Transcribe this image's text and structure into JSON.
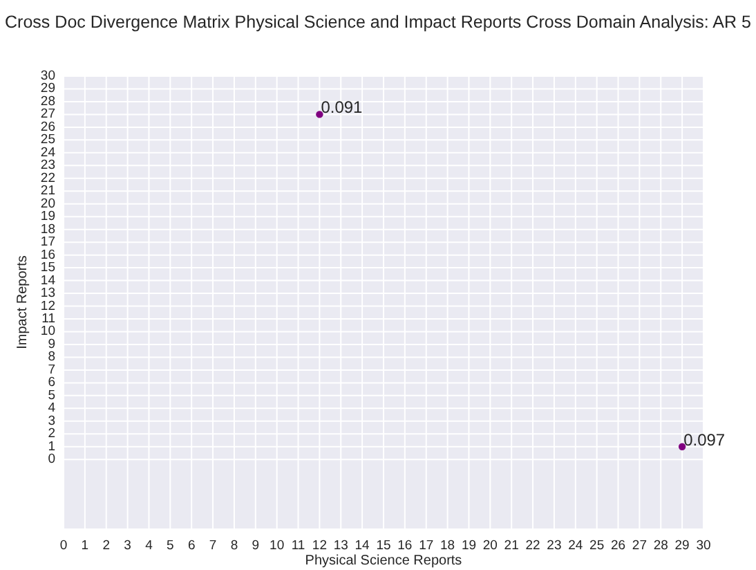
{
  "chart_data": {
    "type": "scatter",
    "title": "Cross Doc Divergence Matrix  Physical Science and Impact Reports Cross Domain Analysis: AR 5",
    "xlabel": "Physical Science Reports",
    "ylabel": "Impact Reports",
    "x": [
      12,
      29
    ],
    "values": [
      27,
      1
    ],
    "color": "#800080",
    "annotations": [
      {
        "text": "0.091",
        "x": 12,
        "y": 27
      },
      {
        "text": "0.097",
        "x": 29,
        "y": 1
      }
    ],
    "xlim": [
      0,
      30
    ],
    "xticks": [
      0,
      1,
      2,
      3,
      4,
      5,
      6,
      7,
      8,
      9,
      10,
      11,
      12,
      13,
      14,
      15,
      16,
      17,
      18,
      19,
      20,
      21,
      22,
      23,
      24,
      25,
      26,
      27,
      28,
      29,
      30
    ],
    "ylim": [
      -5.4,
      30
    ],
    "yticks": [
      0,
      1,
      2,
      3,
      4,
      5,
      6,
      7,
      8,
      9,
      10,
      11,
      12,
      13,
      14,
      15,
      16,
      17,
      18,
      19,
      20,
      21,
      22,
      23,
      24,
      25,
      26,
      27,
      28,
      29,
      30
    ],
    "grid": true,
    "marker": "circle"
  }
}
